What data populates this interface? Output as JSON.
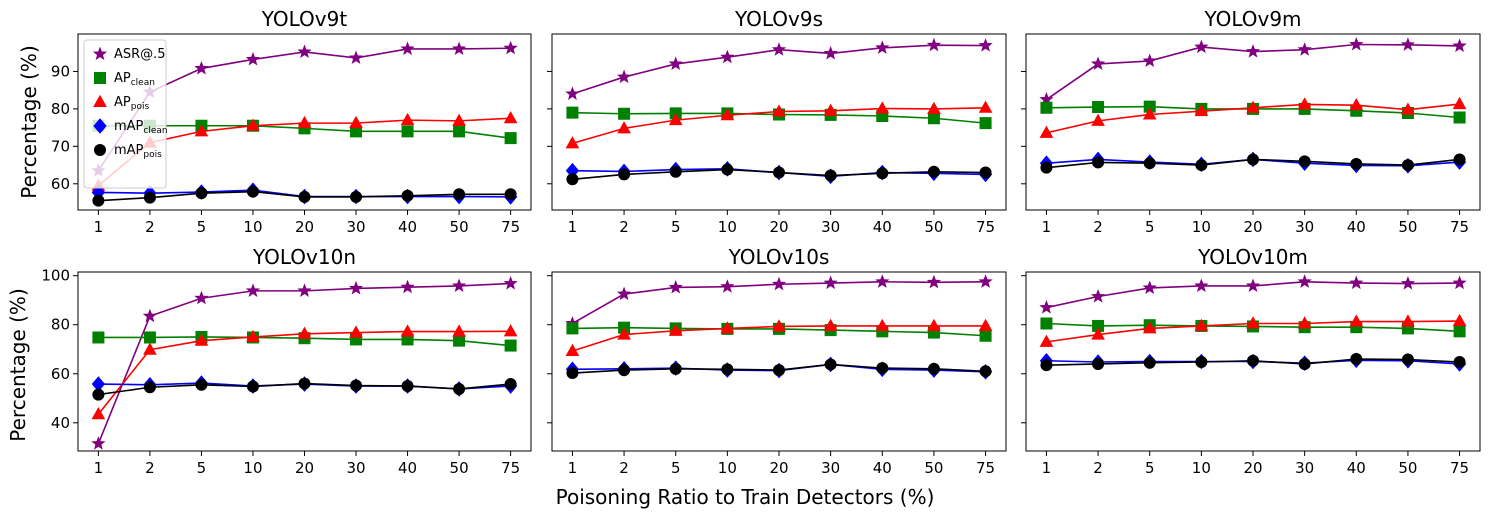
{
  "figure": {
    "xlabel": "Poisoning Ratio to Train Detectors (%)",
    "ylabel": "Percentage (%)"
  },
  "legend": {
    "location": "top-left",
    "entries": [
      {
        "key": "asr",
        "label": "ASR@.5",
        "sub": ""
      },
      {
        "key": "ap_clean",
        "label": "AP",
        "sub": "clean"
      },
      {
        "key": "ap_pois",
        "label": "AP",
        "sub": "pois"
      },
      {
        "key": "map_clean",
        "label": "mAP",
        "sub": "clean"
      },
      {
        "key": "map_pois",
        "label": "mAP",
        "sub": "pois"
      }
    ]
  },
  "styles": {
    "asr": {
      "color": "#800080",
      "marker": "star"
    },
    "ap_clean": {
      "color": "#008000",
      "marker": "square"
    },
    "ap_pois": {
      "color": "#ff0000",
      "marker": "triangle"
    },
    "map_clean": {
      "color": "#0000ff",
      "marker": "diamond"
    },
    "map_pois": {
      "color": "#000000",
      "marker": "circle"
    }
  },
  "chart_data": [
    {
      "type": "line",
      "title": "YOLOv9t",
      "categories": [
        "1",
        "2",
        "5",
        "10",
        "20",
        "30",
        "40",
        "50",
        "75"
      ],
      "ylim": [
        53,
        100
      ],
      "yticks": [
        60,
        70,
        80,
        90
      ],
      "series": [
        {
          "key": "asr",
          "name": "ASR@.5",
          "values": [
            63.5,
            84.5,
            90.8,
            93.2,
            95.2,
            93.6,
            96.0,
            96.0,
            96.2
          ]
        },
        {
          "key": "ap_clean",
          "name": "AP clean",
          "values": [
            75.5,
            75.5,
            75.5,
            75.5,
            74.8,
            74.0,
            74.0,
            74.0,
            72.2
          ]
        },
        {
          "key": "ap_pois",
          "name": "AP pois",
          "values": [
            59.5,
            71.0,
            74.0,
            75.5,
            76.2,
            76.2,
            77.0,
            76.8,
            77.5
          ]
        },
        {
          "key": "map_clean",
          "name": "mAP clean",
          "values": [
            57.7,
            57.5,
            57.8,
            58.3,
            56.6,
            56.6,
            56.6,
            56.6,
            56.5
          ]
        },
        {
          "key": "map_pois",
          "name": "mAP pois",
          "values": [
            55.5,
            56.3,
            57.5,
            57.9,
            56.5,
            56.5,
            56.8,
            57.2,
            57.2
          ]
        }
      ]
    },
    {
      "type": "line",
      "title": "YOLOv9s",
      "categories": [
        "1",
        "2",
        "5",
        "10",
        "20",
        "30",
        "40",
        "50",
        "75"
      ],
      "ylim": [
        53,
        100
      ],
      "yticks": [
        60,
        70,
        80,
        90
      ],
      "series": [
        {
          "key": "asr",
          "name": "ASR@.5",
          "values": [
            84.0,
            88.5,
            92.0,
            93.8,
            95.8,
            94.8,
            96.3,
            97.0,
            96.9
          ]
        },
        {
          "key": "ap_clean",
          "name": "AP clean",
          "values": [
            79.0,
            78.7,
            78.8,
            78.8,
            78.5,
            78.4,
            78.1,
            77.5,
            76.2
          ]
        },
        {
          "key": "ap_pois",
          "name": "AP pois",
          "values": [
            70.8,
            74.8,
            77.0,
            78.3,
            79.3,
            79.5,
            80.1,
            80.0,
            80.3
          ]
        },
        {
          "key": "map_clean",
          "name": "mAP clean",
          "values": [
            63.5,
            63.3,
            63.8,
            64.0,
            63.0,
            62.0,
            63.0,
            62.8,
            62.5
          ]
        },
        {
          "key": "map_pois",
          "name": "mAP pois",
          "values": [
            61.2,
            62.5,
            63.2,
            63.8,
            63.0,
            62.2,
            62.8,
            63.2,
            63.0
          ]
        }
      ]
    },
    {
      "type": "line",
      "title": "YOLOv9m",
      "categories": [
        "1",
        "2",
        "5",
        "10",
        "20",
        "30",
        "40",
        "50",
        "75"
      ],
      "ylim": [
        53,
        100
      ],
      "yticks": [
        60,
        70,
        80,
        90
      ],
      "series": [
        {
          "key": "asr",
          "name": "ASR@.5",
          "values": [
            82.5,
            92.0,
            92.8,
            96.5,
            95.3,
            95.8,
            97.2,
            97.1,
            96.8
          ]
        },
        {
          "key": "ap_clean",
          "name": "AP clean",
          "values": [
            80.3,
            80.5,
            80.6,
            80.0,
            80.0,
            80.0,
            79.5,
            78.9,
            77.7
          ]
        },
        {
          "key": "ap_pois",
          "name": "AP pois",
          "values": [
            73.6,
            76.8,
            78.5,
            79.4,
            80.3,
            81.2,
            81.0,
            79.8,
            81.3
          ]
        },
        {
          "key": "map_clean",
          "name": "mAP clean",
          "values": [
            65.5,
            66.5,
            65.8,
            65.2,
            66.5,
            65.5,
            64.9,
            64.8,
            65.8
          ]
        },
        {
          "key": "map_pois",
          "name": "mAP pois",
          "values": [
            64.3,
            65.7,
            65.5,
            65.0,
            66.5,
            66.0,
            65.3,
            65.0,
            66.5
          ]
        }
      ]
    },
    {
      "type": "line",
      "title": "YOLOv10n",
      "categories": [
        "1",
        "2",
        "5",
        "10",
        "20",
        "30",
        "40",
        "50",
        "75"
      ],
      "ylim": [
        28.5,
        101.5
      ],
      "yticks": [
        40,
        60,
        80,
        100
      ],
      "series": [
        {
          "key": "asr",
          "name": "ASR@.5",
          "values": [
            31.5,
            83.5,
            90.8,
            93.8,
            93.8,
            94.8,
            95.3,
            95.8,
            96.8
          ]
        },
        {
          "key": "ap_clean",
          "name": "AP clean",
          "values": [
            74.8,
            74.8,
            75.0,
            74.8,
            74.5,
            74.0,
            74.0,
            73.5,
            71.5
          ]
        },
        {
          "key": "ap_pois",
          "name": "AP pois",
          "values": [
            43.5,
            69.8,
            73.5,
            75.0,
            76.3,
            76.8,
            77.2,
            77.2,
            77.3
          ]
        },
        {
          "key": "map_clean",
          "name": "mAP clean",
          "values": [
            55.8,
            55.5,
            56.2,
            55.0,
            55.8,
            55.0,
            55.0,
            53.8,
            55.0
          ]
        },
        {
          "key": "map_pois",
          "name": "mAP pois",
          "values": [
            51.5,
            54.5,
            55.5,
            54.8,
            56.0,
            55.2,
            55.0,
            53.8,
            55.8
          ]
        }
      ]
    },
    {
      "type": "line",
      "title": "YOLOv10s",
      "categories": [
        "1",
        "2",
        "5",
        "10",
        "20",
        "30",
        "40",
        "50",
        "75"
      ],
      "ylim": [
        28.5,
        101.5
      ],
      "yticks": [
        40,
        60,
        80,
        100
      ],
      "series": [
        {
          "key": "asr",
          "name": "ASR@.5",
          "values": [
            80.5,
            92.5,
            95.2,
            95.5,
            96.5,
            97.0,
            97.5,
            97.3,
            97.5
          ]
        },
        {
          "key": "ap_clean",
          "name": "AP clean",
          "values": [
            78.5,
            78.8,
            78.5,
            78.3,
            78.3,
            77.8,
            77.3,
            76.8,
            75.5
          ]
        },
        {
          "key": "ap_pois",
          "name": "AP pois",
          "values": [
            69.3,
            76.0,
            77.5,
            78.5,
            79.3,
            79.5,
            79.5,
            79.5,
            79.5
          ]
        },
        {
          "key": "map_clean",
          "name": "mAP clean",
          "values": [
            61.8,
            62.0,
            62.3,
            61.5,
            61.3,
            63.8,
            61.8,
            61.5,
            60.8
          ]
        },
        {
          "key": "map_pois",
          "name": "mAP pois",
          "values": [
            60.3,
            61.5,
            62.0,
            61.8,
            61.5,
            63.8,
            62.3,
            62.0,
            61.0
          ]
        }
      ]
    },
    {
      "type": "line",
      "title": "YOLOv10m",
      "categories": [
        "1",
        "2",
        "5",
        "10",
        "20",
        "30",
        "40",
        "50",
        "75"
      ],
      "ylim": [
        28.5,
        101.5
      ],
      "yticks": [
        40,
        60,
        80,
        100
      ],
      "series": [
        {
          "key": "asr",
          "name": "ASR@.5",
          "values": [
            87.0,
            91.5,
            95.0,
            95.8,
            95.8,
            97.5,
            97.0,
            96.8,
            97.0
          ]
        },
        {
          "key": "ap_clean",
          "name": "AP clean",
          "values": [
            80.5,
            79.5,
            79.8,
            79.5,
            79.3,
            79.0,
            79.0,
            78.5,
            77.3
          ]
        },
        {
          "key": "ap_pois",
          "name": "AP pois",
          "values": [
            73.0,
            76.0,
            78.5,
            79.5,
            80.5,
            80.5,
            81.3,
            81.3,
            81.5
          ]
        },
        {
          "key": "map_clean",
          "name": "mAP clean",
          "values": [
            65.3,
            64.8,
            65.0,
            65.0,
            65.0,
            64.3,
            65.5,
            65.3,
            64.0
          ]
        },
        {
          "key": "map_pois",
          "name": "mAP pois",
          "values": [
            63.5,
            64.0,
            64.5,
            64.8,
            65.3,
            64.0,
            66.0,
            65.8,
            64.8
          ]
        }
      ]
    }
  ]
}
